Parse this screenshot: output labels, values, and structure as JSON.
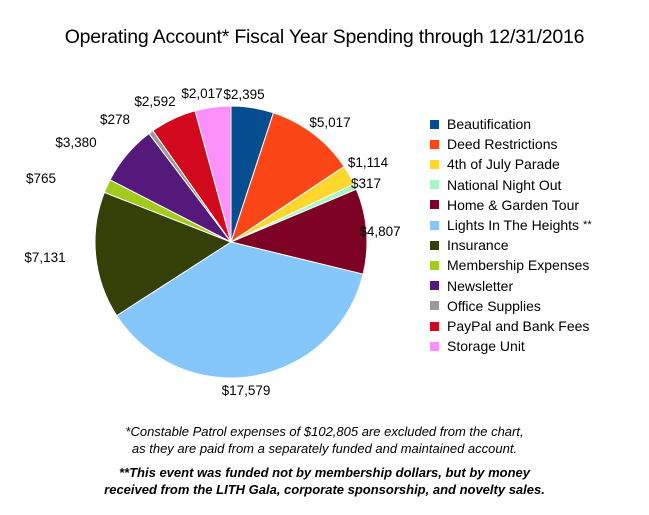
{
  "chart_data": {
    "type": "pie",
    "title": "Operating Account* Fiscal Year Spending through 12/31/2016",
    "slices": [
      {
        "name": "Beautification",
        "value": 2395,
        "label": "$2,395",
        "color": "#064d8f"
      },
      {
        "name": "Deed Restrictions",
        "value": 5017,
        "label": "$5,017",
        "color": "#fc4617"
      },
      {
        "name": "4th of July Parade",
        "value": 1114,
        "label": "$1,114",
        "color": "#fdd62e"
      },
      {
        "name": "National Night Out",
        "value": 317,
        "label": "$317",
        "color": "#a2f7c4"
      },
      {
        "name": "Home & Garden Tour",
        "value": 4807,
        "label": "$4,807",
        "color": "#7d0025"
      },
      {
        "name": "Lights In The Heights",
        "value": 17579,
        "label": "$17,579",
        "color": "#86c7fb",
        "legend_suffix": "**"
      },
      {
        "name": "Insurance",
        "value": 7131,
        "label": "$7,131",
        "color": "#354008"
      },
      {
        "name": "Membership Expenses",
        "value": 765,
        "label": "$765",
        "color": "#a1cb1d"
      },
      {
        "name": "Newsletter",
        "value": 3380,
        "label": "$3,380",
        "color": "#54197b"
      },
      {
        "name": "Office Supplies",
        "value": 278,
        "label": "$278",
        "color": "#9a9a9a"
      },
      {
        "name": "PayPal and Bank Fees",
        "value": 2592,
        "label": "$2,592",
        "color": "#d2091d"
      },
      {
        "name": "Storage Unit",
        "value": 2017,
        "label": "$2,017",
        "color": "#fc92f9"
      }
    ],
    "legend_position": "right"
  },
  "footnotes": {
    "line1": "*Constable Patrol expenses of $102,805 are excluded from the chart,",
    "line2": "as they are paid from a separately funded and maintained account.",
    "line3": "**This event was funded not by membership dollars, but by money",
    "line4": "received from the LITH Gala, corporate sponsorship, and novelty sales."
  }
}
